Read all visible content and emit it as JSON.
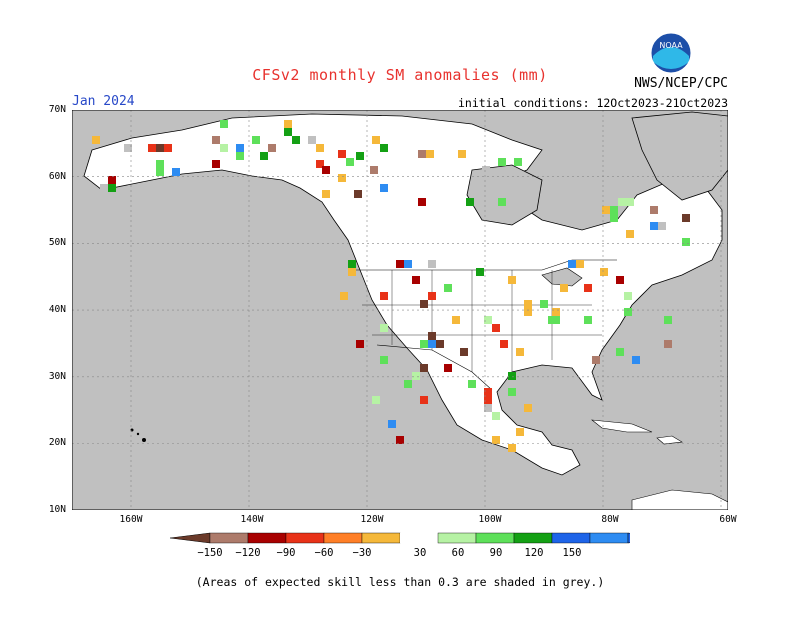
{
  "title": "CFSv2 monthly SM anomalies (mm)",
  "org": "NWS/NCEP/CPC",
  "logo_text": "NOAA",
  "month": "Jan 2024",
  "init": "initial conditions: 12Oct2023-21Oct2023",
  "lat_labels": [
    "70N",
    "60N",
    "50N",
    "40N",
    "30N",
    "20N",
    "10N"
  ],
  "lon_labels": [
    "160W",
    "140W",
    "120W",
    "100W",
    "80W",
    "60W"
  ],
  "colorbar": {
    "ticks": [
      "−150",
      "−120",
      "−90",
      "−60",
      "−30",
      "30",
      "60",
      "90",
      "120",
      "150"
    ],
    "colors": [
      "#6b3a2a",
      "#ad7b6b",
      "#a80000",
      "#e83218",
      "#ff7f27",
      "#f5b83a",
      "#ffffff",
      "#b6f2a4",
      "#5ee05a",
      "#14a014",
      "#1e64e8",
      "#2e8cf2",
      "#1e64e8"
    ]
  },
  "colors": {
    "grey_skill": "#c0c0c0",
    "land": "#ffffff",
    "title": "#e8322e",
    "month": "#2748c8"
  },
  "note": "(Areas of expected skill less than 0.3 are shaded in grey.)"
}
